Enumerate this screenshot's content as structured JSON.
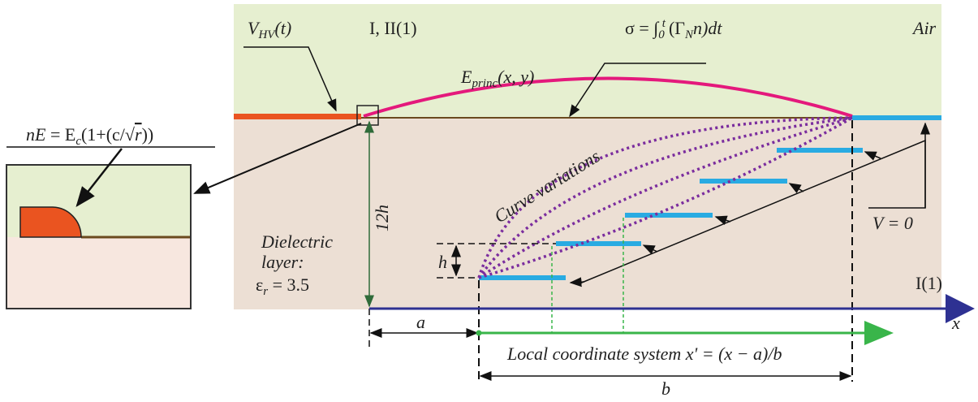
{
  "regions": {
    "upper": "I, II(1)",
    "air": "Air",
    "lower": "I(1)"
  },
  "labels": {
    "voltage": [
      "V",
      "HV",
      "(t)"
    ],
    "charge": [
      "σ = ∫",
      "0",
      "t",
      "(Γ",
      "N",
      "n)dt"
    ],
    "field": [
      "E",
      "princ",
      "(x, y)"
    ],
    "inset": [
      "nE",
      " = E",
      "c",
      "(1+(c/√",
      "r",
      "))"
    ],
    "curve": "Curve variations",
    "height": "12h",
    "dielectric": [
      "Dielectric",
      "layer",
      ":",
      "ε",
      "r",
      " = 3.5"
    ],
    "step": "h",
    "ground": "V = 0",
    "offset": "a",
    "axis": "x",
    "local": "Local coordinate system x' = (x − a)/b",
    "width": "b"
  }
}
